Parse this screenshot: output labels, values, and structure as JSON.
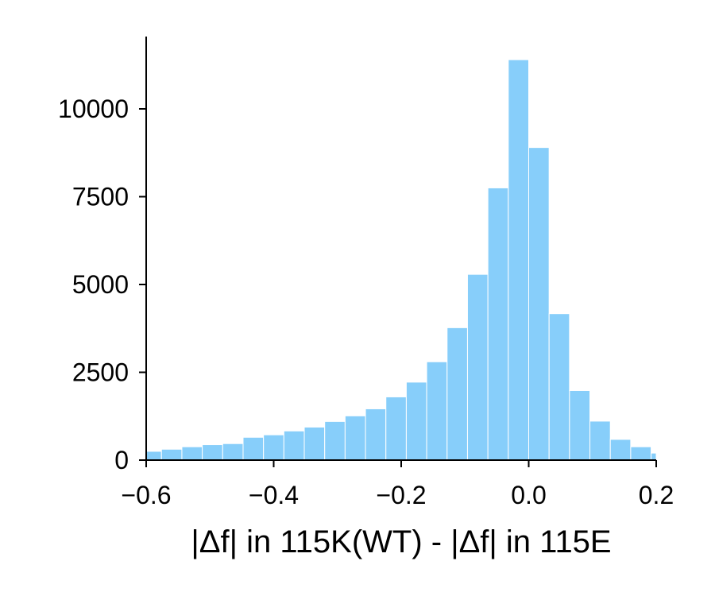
{
  "chart_data": {
    "type": "bar",
    "title": "",
    "xlabel": "|Δf| in 115K(WT) - |Δf| in 115E",
    "ylabel": "",
    "xlim": [
      -0.6,
      0.2
    ],
    "ylim": [
      0,
      12000
    ],
    "x_ticks": [
      -0.6,
      -0.4,
      -0.2,
      0.0,
      0.2
    ],
    "x_tick_labels": [
      "−0.6",
      "−0.4",
      "−0.2",
      "0.0",
      "0.2"
    ],
    "y_ticks": [
      0,
      2500,
      5000,
      7500,
      10000
    ],
    "y_tick_labels": [
      "0",
      "2500",
      "5000",
      "7500",
      "10000"
    ],
    "bin_width": 0.032,
    "bins": [
      {
        "x0": -0.608,
        "x1": -0.576,
        "value": 250
      },
      {
        "x0": -0.576,
        "x1": -0.544,
        "value": 310
      },
      {
        "x0": -0.544,
        "x1": -0.512,
        "value": 380
      },
      {
        "x0": -0.512,
        "x1": -0.48,
        "value": 440
      },
      {
        "x0": -0.48,
        "x1": -0.448,
        "value": 470
      },
      {
        "x0": -0.448,
        "x1": -0.416,
        "value": 650
      },
      {
        "x0": -0.416,
        "x1": -0.384,
        "value": 720
      },
      {
        "x0": -0.384,
        "x1": -0.352,
        "value": 830
      },
      {
        "x0": -0.352,
        "x1": -0.32,
        "value": 940
      },
      {
        "x0": -0.32,
        "x1": -0.288,
        "value": 1100
      },
      {
        "x0": -0.288,
        "x1": -0.256,
        "value": 1260
      },
      {
        "x0": -0.256,
        "x1": -0.224,
        "value": 1460
      },
      {
        "x0": -0.224,
        "x1": -0.192,
        "value": 1800
      },
      {
        "x0": -0.192,
        "x1": -0.16,
        "value": 2220
      },
      {
        "x0": -0.16,
        "x1": -0.128,
        "value": 2800
      },
      {
        "x0": -0.128,
        "x1": -0.096,
        "value": 3770
      },
      {
        "x0": -0.096,
        "x1": -0.064,
        "value": 5290
      },
      {
        "x0": -0.064,
        "x1": -0.032,
        "value": 7750
      },
      {
        "x0": -0.032,
        "x1": 0.0,
        "value": 11400
      },
      {
        "x0": 0.0,
        "x1": 0.032,
        "value": 8900
      },
      {
        "x0": 0.032,
        "x1": 0.064,
        "value": 4170
      },
      {
        "x0": 0.064,
        "x1": 0.096,
        "value": 1980
      },
      {
        "x0": 0.096,
        "x1": 0.128,
        "value": 1110
      },
      {
        "x0": 0.128,
        "x1": 0.16,
        "value": 590
      },
      {
        "x0": 0.16,
        "x1": 0.192,
        "value": 380
      },
      {
        "x0": 0.192,
        "x1": 0.224,
        "value": 200
      }
    ],
    "bar_color": "#87cefa",
    "bar_edge_color": "#ffffff",
    "grid": false,
    "legend": "none"
  }
}
